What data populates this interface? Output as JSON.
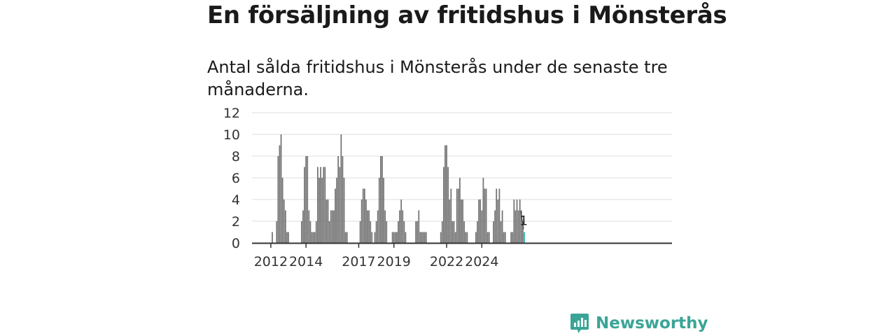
{
  "title": "En försäljning av fritidshus i Mönsterås",
  "subtitle": "Antal sålda fritidshus i Mönsterås under de senaste tre månaderna.",
  "brand": {
    "name": "Newsworthy",
    "icon": "newsworthy-logo-icon",
    "color": "#3aa596"
  },
  "colors": {
    "bar": "#737373",
    "highlight": "#2ab3a6",
    "grid": "#dddddd",
    "axis": "#333333"
  },
  "chart_data": {
    "type": "bar",
    "title": "En försäljning av fritidshus i Mönsterås",
    "subtitle": "Antal sålda fritidshus i Mönsterås under de senaste tre månaderna.",
    "xlabel": "",
    "ylabel": "",
    "ylim": [
      0,
      12
    ],
    "yticks": [
      0,
      2,
      4,
      6,
      8,
      10,
      12
    ],
    "xticks": [
      "2012",
      "2014",
      "2017",
      "2019",
      "2022",
      "2024"
    ],
    "grid": true,
    "start": "2011-09",
    "frequency": "monthly",
    "values": [
      0,
      0,
      0,
      0,
      0,
      1,
      0,
      0,
      2,
      8,
      9,
      10,
      6,
      4,
      3,
      1,
      1,
      0,
      0,
      0,
      0,
      0,
      0,
      0,
      0,
      2,
      3,
      7,
      8,
      8,
      3,
      2,
      1,
      1,
      1,
      2,
      7,
      6,
      7,
      6,
      7,
      7,
      4,
      4,
      2,
      3,
      3,
      3,
      5,
      6,
      8,
      7,
      10,
      8,
      6,
      1,
      1,
      0,
      0,
      0,
      0,
      0,
      0,
      0,
      0,
      2,
      4,
      5,
      5,
      4,
      3,
      3,
      2,
      1,
      0,
      1,
      2,
      3,
      6,
      8,
      8,
      6,
      3,
      2,
      0,
      0,
      0,
      1,
      1,
      1,
      1,
      2,
      3,
      4,
      3,
      2,
      1,
      0,
      0,
      0,
      0,
      0,
      0,
      2,
      2,
      3,
      1,
      1,
      1,
      1,
      1,
      0,
      0,
      0,
      0,
      0,
      0,
      0,
      0,
      0,
      1,
      2,
      7,
      9,
      9,
      7,
      4,
      5,
      2,
      2,
      1,
      5,
      5,
      6,
      4,
      4,
      2,
      1,
      1,
      0,
      0,
      0,
      0,
      0,
      1,
      2,
      4,
      4,
      3,
      6,
      5,
      5,
      1,
      1,
      0,
      0,
      2,
      3,
      5,
      4,
      5,
      2,
      3,
      1,
      1,
      0,
      0,
      0,
      1,
      1,
      4,
      3,
      4,
      3,
      4,
      3,
      2,
      1
    ],
    "highlight_label": "1"
  }
}
